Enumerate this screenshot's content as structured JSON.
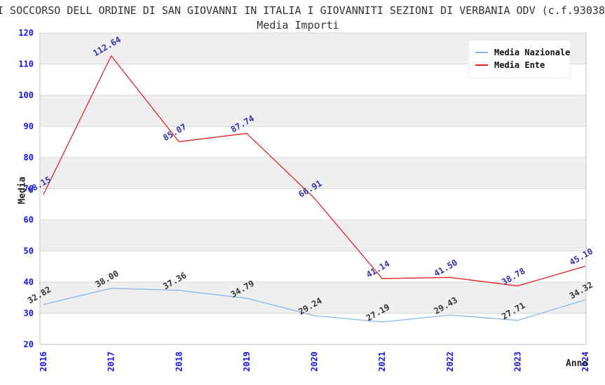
{
  "header": {
    "title": "I SOCCORSO DELL ORDINE DI SAN GIOVANNI IN ITALIA I GIOVANNITI SEZIONI DI VERBANIA ODV (c.f.93038",
    "subtitle": "Media Importi"
  },
  "axes": {
    "y_title": "Media",
    "x_title": "Anno"
  },
  "legend": {
    "items": [
      {
        "label": "Media Nazionale",
        "color": "#8ab4e8"
      },
      {
        "label": "Media Ente",
        "color": "#e62222"
      }
    ]
  },
  "colors": {
    "tick_label": "#1515e6",
    "band_gray": "#efefef",
    "band_white": "#ffffff",
    "gridline": "#d9d9d9",
    "spine": "#c0c0c0",
    "title_text": "#333333"
  },
  "chart_data": {
    "type": "line",
    "title": "Media Importi",
    "xlabel": "Anno",
    "ylabel": "Media",
    "categories": [
      "2016",
      "2017",
      "2018",
      "2019",
      "2020",
      "2021",
      "2022",
      "2023",
      "2024"
    ],
    "series": [
      {
        "name": "Media Nazionale",
        "color": "#8ab4e8",
        "label_color": "#333333",
        "values": [
          32.82,
          38.0,
          37.36,
          34.79,
          29.24,
          27.19,
          29.43,
          27.71,
          34.32
        ]
      },
      {
        "name": "Media Ente",
        "color": "#e62222",
        "label_color": "#3333aa",
        "values": [
          68.15,
          112.64,
          85.07,
          87.74,
          66.91,
          41.14,
          41.5,
          38.78,
          45.1
        ]
      }
    ],
    "ylim": [
      20,
      120
    ],
    "yticks": [
      20,
      30,
      40,
      50,
      60,
      70,
      80,
      90,
      100,
      110,
      120
    ],
    "grid": true,
    "banded_background": true,
    "legend_position": "top-right",
    "point_labels_visible": true
  }
}
